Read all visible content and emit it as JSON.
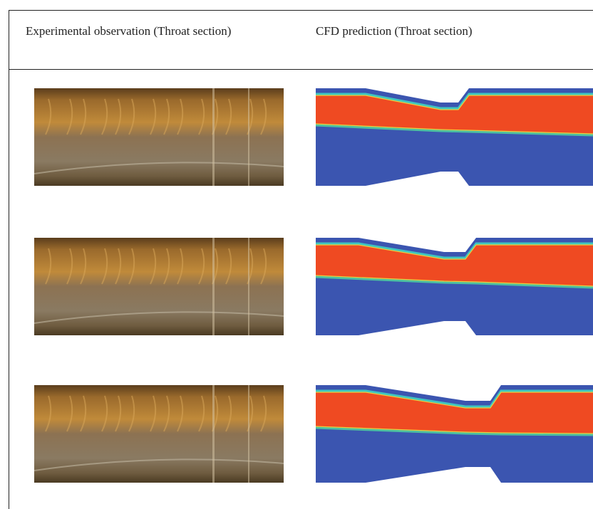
{
  "table": {
    "header": [
      "Experimental observation (Throat section)",
      "CFD prediction (Throat section)"
    ]
  }
}
